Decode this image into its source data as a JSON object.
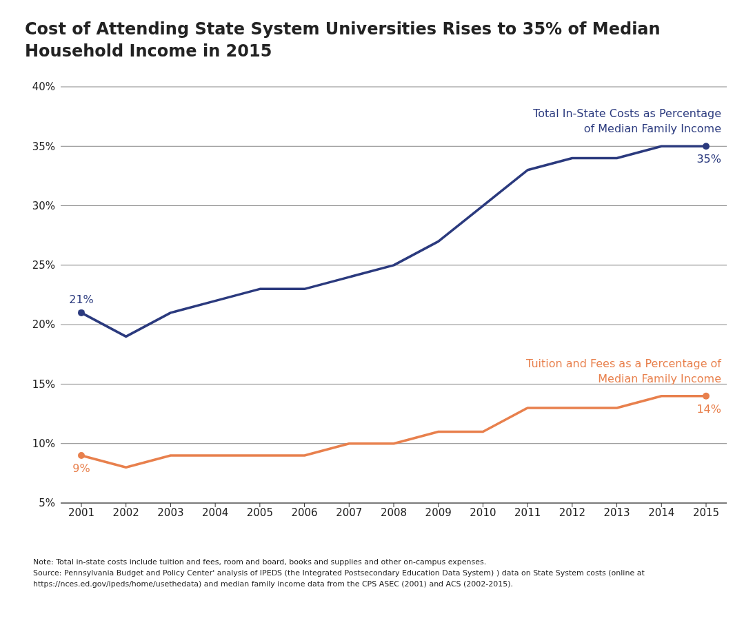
{
  "chart_data": {
    "type": "line",
    "title": "Cost of Attending State System Universities Rises to 35% of Median Household Income in 2015",
    "categories": [
      "2001",
      "2002",
      "2003",
      "2004",
      "2005",
      "2006",
      "2007",
      "2008",
      "2009",
      "2010",
      "2011",
      "2012",
      "2013",
      "2014",
      "2015"
    ],
    "series": [
      {
        "name": "Total In-State Costs as Percentage of Median Family Income",
        "color": "#2b3a7e",
        "values": [
          21,
          19,
          21,
          22,
          23,
          23,
          24,
          25,
          27,
          30,
          33,
          34,
          34,
          35,
          35
        ],
        "value_labels": [
          "21%",
          null,
          null,
          null,
          null,
          null,
          null,
          null,
          null,
          null,
          null,
          null,
          null,
          null,
          "35%"
        ]
      },
      {
        "name": "Tuition and Fees as a Percentage of Median Family Income",
        "color": "#e8804d",
        "values": [
          9,
          8,
          9,
          9,
          9,
          9,
          10,
          10,
          11,
          11,
          13,
          13,
          13,
          14,
          14
        ],
        "value_labels": [
          "9%",
          null,
          null,
          null,
          null,
          null,
          null,
          null,
          null,
          null,
          null,
          null,
          null,
          null,
          "14%"
        ]
      }
    ],
    "ylim": [
      5,
      40
    ],
    "yticks": [
      {
        "value": 5,
        "label": "5%"
      },
      {
        "value": 10,
        "label": "10%"
      },
      {
        "value": 15,
        "label": "15%"
      },
      {
        "value": 20,
        "label": "20%"
      },
      {
        "value": 25,
        "label": "25%"
      },
      {
        "value": 30,
        "label": "30%"
      },
      {
        "value": 35,
        "label": "35%"
      },
      {
        "value": 40,
        "label": "40%"
      }
    ],
    "grid": "y",
    "legend": false,
    "line_style": "solid",
    "annotations": [
      "Note: Total in-state costs include tuition and fees, room and board, books and supplies and other on-campus expenses.",
      "Source: Pennsylvania Budget and Policy Center' analysis of IPEDS (the Integrated Postsecondary Education Data System) ) data on State System costs (online at https://nces.ed.gov/ipeds/home/usethedata) and median family income data from the CPS ASEC (2001) and ACS (2002-2015)."
    ]
  }
}
